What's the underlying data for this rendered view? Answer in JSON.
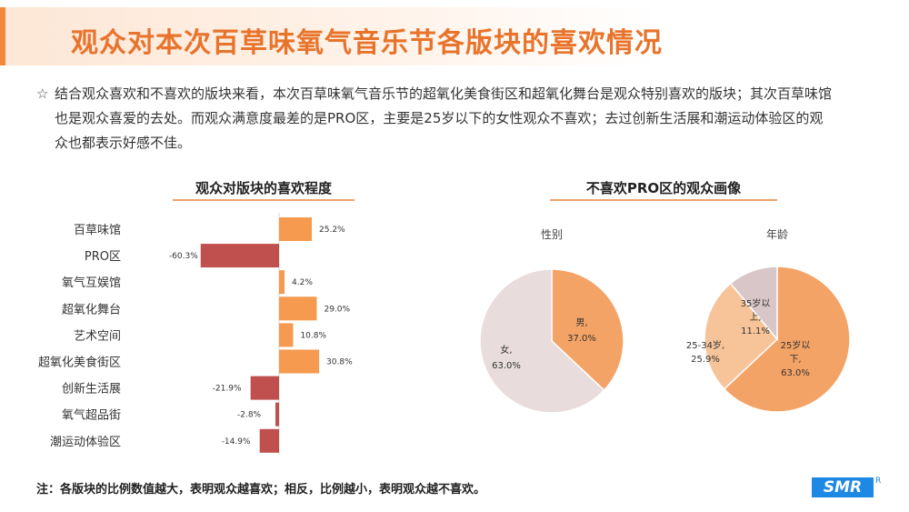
{
  "page": {
    "title": "观众对本次百草味氧气音乐节各版块的喜欢情况",
    "summary_bullet": "☆",
    "summary": "结合观众喜欢和不喜欢的版块来看，本次百草味氧气音乐节的超氧化美食街区和超氧化舞台是观众特别喜欢的版块；其次百草味馆也是观众喜爱的去处。而观众满意度最差的是PRO区，主要是25岁以下的女性观众不喜欢；去过创新生活展和潮运动体验区的观众也都表示好感不佳。",
    "note": "注：各版块的比例数值越大，表明观众越喜欢；相反，比例越小，表明观众越不喜欢。",
    "logo_text": "SMR",
    "logo_mark": "R",
    "colors": {
      "accent": "#e8742c",
      "positive": "#f59a4e",
      "negative": "#c0504d",
      "pie_orange": "#f4a366",
      "pie_light": "#e8dcdc",
      "pie_peach": "#f7c49a",
      "pie_mauve": "#d9c6c8"
    }
  },
  "chart_data": [
    {
      "type": "bar",
      "orientation": "horizontal",
      "title": "观众对版块的喜欢程度",
      "categories": [
        "百草味馆",
        "PRO区",
        "氧气互娱馆",
        "超氧化舞台",
        "艺术空间",
        "超氧化美食街区",
        "创新生活展",
        "氧气超品街",
        "潮运动体验区"
      ],
      "values": [
        25.2,
        -60.3,
        4.2,
        29.0,
        10.8,
        30.8,
        -21.9,
        -2.8,
        -14.9
      ],
      "labels": [
        "25.2%",
        "-60.3%",
        "4.2%",
        "29.0%",
        "10.8%",
        "30.8%",
        "-21.9%",
        "-2.8%",
        "-14.9%"
      ],
      "unit": "%"
    },
    {
      "title": "不喜欢PRO区的观众画像",
      "charts": [
        {
          "type": "pie",
          "title": "性别",
          "slices": [
            {
              "label": "男,",
              "pct": "37.0%",
              "value": 37.0
            },
            {
              "label": "女,",
              "pct": "63.0%",
              "value": 63.0
            }
          ]
        },
        {
          "type": "pie",
          "title": "年龄",
          "slices": [
            {
              "label_lines": [
                "25岁以",
                "下,"
              ],
              "pct": "63.0%",
              "value": 63.0
            },
            {
              "label_lines": [
                "25-34岁,"
              ],
              "pct": "25.9%",
              "value": 25.9
            },
            {
              "label_lines": [
                "35岁以",
                "上,"
              ],
              "pct": "11.1%",
              "value": 11.1
            }
          ]
        }
      ]
    }
  ]
}
